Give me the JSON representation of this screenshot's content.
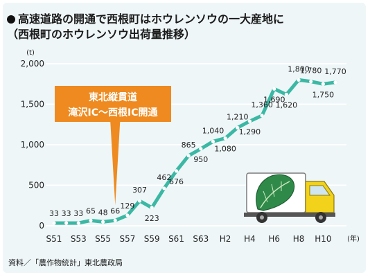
{
  "title_line1": "高速道路の開通で西根町はホウレンソウの一大産地に",
  "title_line2": "（西根町のホウレンソウ出荷量推移）",
  "source": "資料／「農作物統計」東北農政局",
  "callout": {
    "line1": "東北縦貫道",
    "line2": "滝沢IC〜西根IC開通"
  },
  "colors": {
    "background": "#eef6f8",
    "line": "#3bb8a4",
    "marker": "#ffffff",
    "callout": "#ee8a1f",
    "truck_cab": "#f2d21a",
    "truck_box": "#ffffff",
    "spinach": "#2f8a4a"
  },
  "chart_data": {
    "type": "line",
    "y_unit_label": "(t)",
    "x_unit_label": "(年)",
    "ylim": [
      0,
      2000
    ],
    "yticks": [
      0,
      500,
      1000,
      1500,
      2000
    ],
    "ytick_labels": [
      "0",
      "500",
      "1,000",
      "1,500",
      "2,000"
    ],
    "x_tick_labels": [
      "S51",
      "S53",
      "S55",
      "S57",
      "S59",
      "S61",
      "S63",
      "H2",
      "H4",
      "H6",
      "H8",
      "H10"
    ],
    "grid": true,
    "series": [
      {
        "values": [
          33,
          33,
          33,
          65,
          48,
          66,
          129,
          307,
          223,
          462,
          676,
          865,
          950,
          1040,
          1080,
          1210,
          1290,
          1360,
          1690,
          1620,
          1800,
          1780,
          1750,
          1770
        ],
        "labels": [
          "33",
          "33",
          "33",
          "65",
          "48",
          "66",
          "129",
          "307",
          "223",
          "462",
          "676",
          "865",
          "950",
          "1,040",
          "1,080",
          "1,210",
          "1,290",
          "1,360",
          "1,690",
          "1,620",
          "1,800",
          "1,780",
          "1,750",
          "1,770"
        ]
      }
    ],
    "callout_index": 5
  }
}
